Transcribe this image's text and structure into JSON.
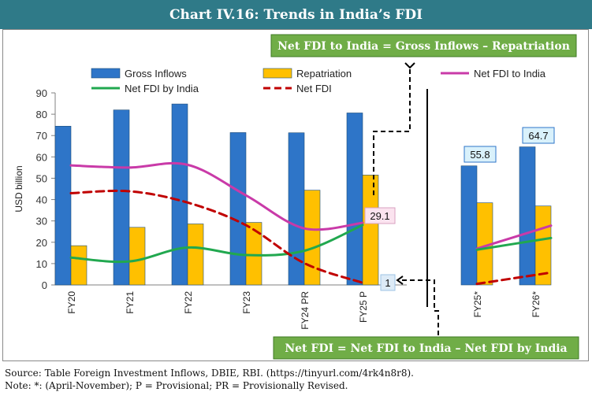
{
  "title": "Chart IV.16: Trends in India’s FDI",
  "chart_data": {
    "type": "bar",
    "ylabel": "USD billion",
    "ylim": [
      0,
      90
    ],
    "yticks": [
      0,
      10,
      20,
      30,
      40,
      50,
      60,
      70,
      80,
      90
    ],
    "categories": [
      "FY20",
      "FY21",
      "FY22",
      "FY23",
      "FY24 PR",
      "FY25 P"
    ],
    "categories_part": [
      "FY25*",
      "FY26*"
    ],
    "legend": [
      {
        "name": "Gross Inflows",
        "kind": "bar",
        "color": "#2e75c8"
      },
      {
        "name": "Repatriation",
        "kind": "bar",
        "color": "#ffc000"
      },
      {
        "name": "Net FDI to India",
        "kind": "line",
        "color": "#c93aa8"
      },
      {
        "name": "Net FDI by India",
        "kind": "line",
        "color": "#21a84f"
      },
      {
        "name": "Net FDI",
        "kind": "dashed",
        "color": "#c00000"
      }
    ],
    "series": [
      {
        "name": "Gross Inflows",
        "values": [
          74.4,
          82.0,
          84.8,
          71.4,
          71.3,
          80.6
        ],
        "values_part": [
          55.8,
          64.7
        ]
      },
      {
        "name": "Repatriation",
        "values": [
          18.4,
          27.0,
          28.6,
          29.3,
          44.4,
          51.5
        ],
        "values_part": [
          38.5,
          37.0
        ]
      },
      {
        "name": "Net FDI to India",
        "values": [
          56.0,
          55.0,
          56.3,
          42.0,
          26.5,
          29.1
        ],
        "values_part": [
          17.0,
          27.8
        ]
      },
      {
        "name": "Net FDI by India",
        "values": [
          12.8,
          11.0,
          17.5,
          14.0,
          16.0,
          28.1
        ],
        "values_part": [
          16.5,
          22.0
        ]
      },
      {
        "name": "Net FDI",
        "values": [
          43.0,
          43.9,
          38.6,
          28.0,
          10.2,
          1.0
        ],
        "values_part": [
          0.5,
          5.8
        ]
      }
    ],
    "data_labels": [
      "29.1",
      "1",
      "55.8",
      "64.7"
    ],
    "annotations": {
      "top_formula": "Net FDI to India = Gross Inflows – Repatriation",
      "bottom_formula": "Net FDI = Net FDI to India – Net FDI by India"
    }
  },
  "footer": {
    "source": "Source: Table Foreign Investment Inflows, DBIE, RBI. (https://tinyurl.com/4rk4n8r8).",
    "note": "Note: *: (April-November); P = Provisional; PR = Provisionally Revised."
  }
}
